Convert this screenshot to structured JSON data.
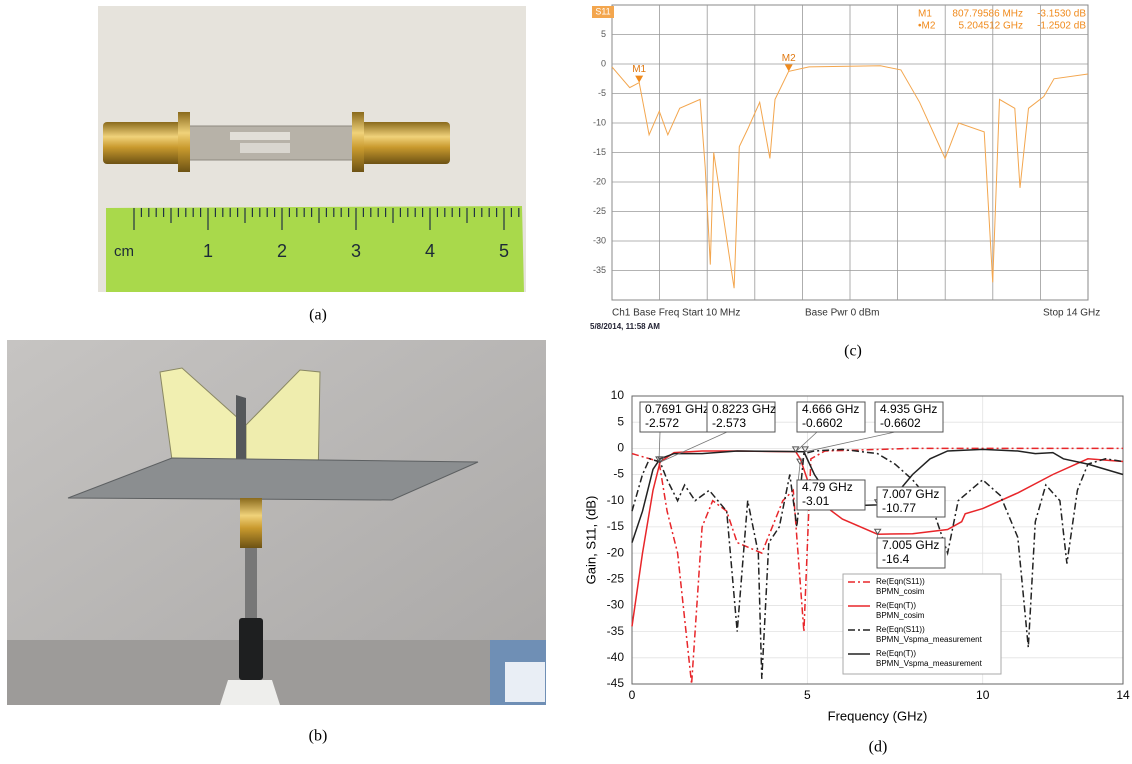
{
  "panels": {
    "a": {
      "caption": "(a)",
      "ruler_labels": [
        "cm",
        "1",
        "2",
        "3",
        "4",
        "5"
      ]
    },
    "b": {
      "caption": "(b)"
    }
  },
  "chart_data": [
    {
      "type": "line",
      "caption": "(c)",
      "trace_label": "S11",
      "xlim": [
        0.01,
        14
      ],
      "ylim": [
        -40,
        10
      ],
      "yticks": [
        5,
        0,
        -5,
        -10,
        -15,
        -20,
        -25,
        -30,
        -35
      ],
      "grid": true,
      "footer": [
        "Ch1 Base Freq Start 10 MHz",
        "Base Pwr 0 dBm",
        "Stop 14 GHz"
      ],
      "timestamp": "5/8/2014, 11:58 AM",
      "markers": [
        {
          "name": "M1",
          "readout_name": "M1",
          "x": 0.80779586,
          "x_label": "807.79586 MHz",
          "y": -3.153,
          "y_label": "-3.1530 dB"
        },
        {
          "name": "M2",
          "readout_name": "•M2",
          "x": 5.204512,
          "x_label": "5.204512 GHz",
          "y": -1.2502,
          "y_label": "-1.2502 dB"
        }
      ],
      "series": [
        {
          "name": "S11",
          "color": "#f3a64e",
          "style": "solid",
          "x": [
            0.01,
            0.53,
            0.81,
            1.1,
            1.4,
            1.65,
            2.0,
            2.6,
            2.75,
            2.9,
            3.0,
            3.6,
            3.75,
            4.0,
            4.35,
            4.65,
            4.8,
            5.2,
            5.8,
            7.9,
            8.5,
            9.05,
            9.8,
            10.2,
            10.95,
            11.2,
            11.4,
            11.85,
            12.0,
            12.25,
            12.7,
            13.0,
            14
          ],
          "values": [
            -0.5,
            -4,
            -3.15,
            -12,
            -8,
            -12,
            -7.5,
            -6,
            -17.5,
            -34,
            -15,
            -38,
            -14,
            -11,
            -6.5,
            -16,
            -6,
            -1.25,
            -0.5,
            -0.3,
            -1,
            -6.5,
            -16,
            -10,
            -11.5,
            -37,
            -6,
            -7.5,
            -21,
            -7.5,
            -5.5,
            -2.5,
            -1.7
          ]
        }
      ]
    },
    {
      "type": "line",
      "caption": "(d)",
      "x_label": "Frequency (GHz)",
      "y_label": "Gain, S11, (dB)",
      "xlim": [
        0,
        14
      ],
      "xticks": [
        0,
        5,
        10,
        14
      ],
      "ylim": [
        -45,
        10
      ],
      "yticks": [
        10,
        5,
        0,
        -5,
        -10,
        -15,
        -20,
        -25,
        -30,
        -35,
        -40,
        -45
      ],
      "grid": true,
      "annotations": [
        {
          "x": 0.7691,
          "x_label": "0.7691 GHz",
          "y": -2.572
        },
        {
          "x": 0.8223,
          "x_label": "0.8223 GHz",
          "y": -2.573
        },
        {
          "x": 4.666,
          "x_label": "4.666 GHz",
          "y": -0.6602
        },
        {
          "x": 4.935,
          "x_label": "4.935 GHz",
          "y": -0.6602
        },
        {
          "x": 4.79,
          "x_label": "4.79 GHz",
          "y": -3.01
        },
        {
          "x": 7.007,
          "x_label": "7.007 GHz",
          "y": -10.77
        },
        {
          "x": 7.005,
          "x_label": "7.005 GHz",
          "y": -16.4
        }
      ],
      "series": [
        {
          "name": "Re(Eqn(S11))",
          "dataset": "BPMN_cosim",
          "color": "#e8262a",
          "style": "dashdot",
          "x": [
            0,
            0.77,
            1.0,
            1.3,
            1.7,
            2.0,
            2.3,
            2.7,
            3.0,
            3.7,
            4.3,
            4.6,
            4.9,
            5.1,
            5.5,
            8,
            14
          ],
          "values": [
            -1,
            -2.5,
            -12,
            -20,
            -45,
            -15,
            -10,
            -12,
            -18,
            -20,
            -10,
            -8,
            -35,
            -2,
            -0.5,
            0,
            0
          ]
        },
        {
          "name": "Re(Eqn(T))",
          "dataset": "BPMN_cosim",
          "color": "#e8262a",
          "style": "solid",
          "x": [
            0,
            0.3,
            0.6,
            0.8,
            1.2,
            2,
            3,
            4,
            4.67,
            4.8,
            5,
            5.5,
            6,
            7,
            8,
            9,
            9.4,
            9.5,
            10,
            11,
            12,
            13,
            14
          ],
          "values": [
            -34,
            -20,
            -8,
            -2.6,
            -0.8,
            -0.5,
            -0.5,
            -0.6,
            -0.66,
            -2,
            -6,
            -11,
            -13.5,
            -16.4,
            -16.3,
            -15.5,
            -14,
            -12.5,
            -11.5,
            -8.5,
            -5,
            -2,
            -2.5
          ]
        },
        {
          "name": "Re(Eqn(S11))",
          "dataset": "BPMN_Vspma_measurement",
          "color": "#222222",
          "style": "dashdot",
          "x": [
            0,
            0.3,
            0.5,
            0.8,
            1.0,
            1.3,
            1.5,
            1.8,
            2.2,
            2.7,
            3.0,
            3.3,
            3.6,
            3.7,
            3.9,
            4.2,
            4.5,
            4.7,
            4.9,
            5.2,
            6,
            7,
            7.5,
            8,
            8.5,
            9,
            9.3,
            10,
            10.5,
            11,
            11.3,
            11.5,
            11.8,
            12.2,
            12.4,
            12.7,
            13,
            13.5,
            14
          ],
          "values": [
            -12,
            -5,
            -2,
            -2.6,
            -6,
            -10,
            -7,
            -10,
            -8,
            -12,
            -35,
            -10,
            -20,
            -44,
            -18,
            -15,
            -5,
            -15,
            -1,
            -0.5,
            -0.2,
            -1,
            -3,
            -6,
            -10,
            -20,
            -10,
            -6,
            -9,
            -17,
            -38,
            -14,
            -7,
            -10,
            -22,
            -8,
            -3,
            -2,
            -2.5
          ]
        },
        {
          "name": "Re(Eqn(T))",
          "dataset": "BPMN_Vspma_measurement",
          "color": "#222222",
          "style": "solid",
          "x": [
            0,
            0.3,
            0.6,
            0.8,
            1.2,
            2,
            3,
            4.5,
            4.9,
            5.2,
            5.5,
            6,
            7,
            7.5,
            8,
            8.5,
            9,
            10,
            11,
            11.5,
            12,
            12.3,
            13,
            14
          ],
          "values": [
            -18,
            -12,
            -4,
            -2,
            -1,
            -1,
            -0.5,
            -0.6,
            -0.66,
            -5,
            -8,
            -11,
            -10.8,
            -9,
            -5,
            -2,
            -0.5,
            -0.2,
            -0.5,
            -1,
            -0.8,
            -2,
            -3,
            -5
          ]
        }
      ]
    }
  ]
}
